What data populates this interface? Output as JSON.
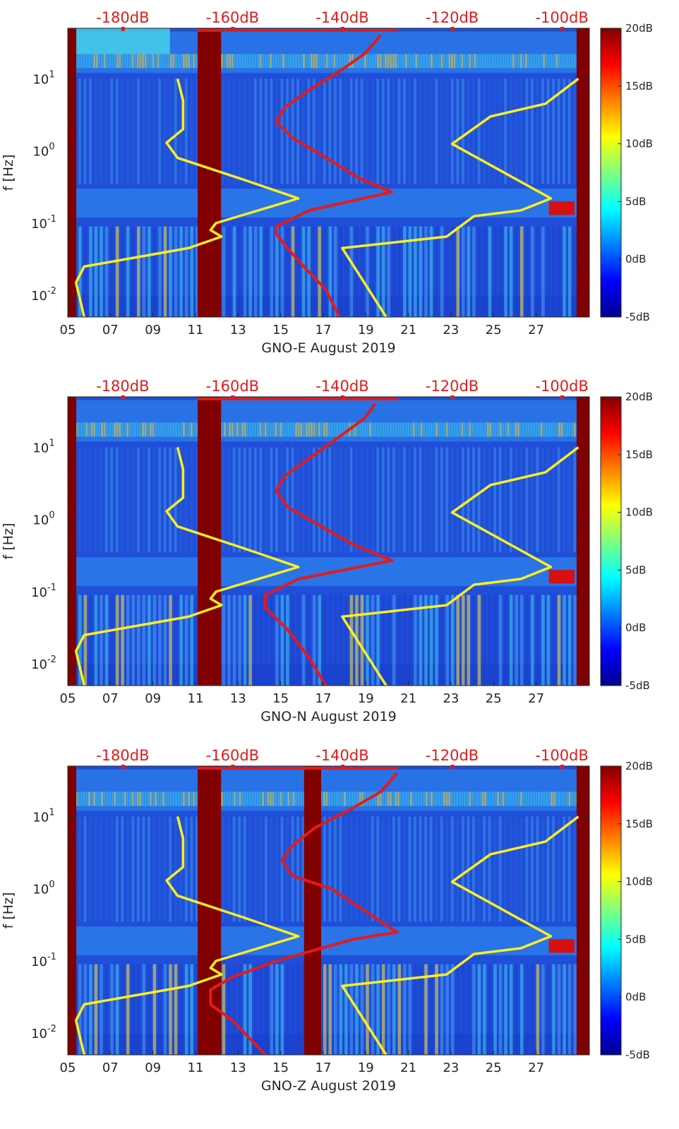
{
  "chart_data": [
    {
      "type": "heatmap",
      "title": "GNO-E August 2019",
      "xlabel": "GNO-E August 2019",
      "ylabel": "f [Hz]",
      "x_ticks": [
        "05",
        "07",
        "09",
        "11",
        "13",
        "15",
        "17",
        "19",
        "21",
        "23",
        "25",
        "27"
      ],
      "x_range_days": [
        5,
        29.5
      ],
      "y_ticks": [
        {
          "value": 0.01,
          "base": "10",
          "exp": "-2"
        },
        {
          "value": 0.1,
          "base": "10",
          "exp": "-1"
        },
        {
          "value": 1,
          "base": "10",
          "exp": "0"
        },
        {
          "value": 10,
          "base": "10",
          "exp": "1"
        }
      ],
      "y_range_hz": [
        0.005,
        50
      ],
      "y_scale": "log",
      "top_ticks": [
        "-180dB",
        "-160dB",
        "-140dB",
        "-120dB",
        "-100dB"
      ],
      "top_range_db": [
        -190,
        -95
      ],
      "colorbar": {
        "ticks": [
          "20dB",
          "15dB",
          "10dB",
          "5dB",
          "0dB",
          "-5dB"
        ],
        "range_db": [
          -5,
          20
        ],
        "colormap": "jet"
      },
      "gaps_days": [
        [
          5,
          5.4
        ],
        [
          11.1,
          12.2
        ],
        [
          28.9,
          29.5
        ]
      ],
      "series": [
        {
          "name": "noise model (yellow)",
          "color": "#ffee22",
          "unit_x": "dB",
          "points_db_hz": [
            [
              -187,
              0.005
            ],
            [
              -188.5,
              0.015
            ],
            [
              -187,
              0.025
            ],
            [
              -168,
              0.045
            ],
            [
              -162,
              0.065
            ],
            [
              -164,
              0.08
            ],
            [
              -163,
              0.1
            ],
            [
              -148,
              0.22
            ],
            [
              -158,
              0.4
            ],
            [
              -170,
              0.8
            ],
            [
              -172,
              1.3
            ],
            [
              -169,
              2
            ],
            [
              -169,
              5
            ],
            [
              -170,
              10
            ]
          ]
        },
        {
          "name": "noise model right (yellow)",
          "color": "#ffee22",
          "unit_x": "dB",
          "points_db_hz": [
            [
              -132,
              0.005
            ],
            [
              -140,
              0.045
            ],
            [
              -121,
              0.065
            ],
            [
              -116,
              0.125
            ],
            [
              -107.5,
              0.15
            ],
            [
              -102,
              0.22
            ],
            [
              -120,
              1.25
            ],
            [
              -113,
              3
            ],
            [
              -103,
              4.5
            ],
            [
              -97,
              10
            ]
          ]
        },
        {
          "name": "site noise (red)",
          "color": "#e21b1b",
          "unit_x": "dB",
          "points_db_hz": [
            [
              -140.5,
              0.005
            ],
            [
              -143,
              0.012
            ],
            [
              -147,
              0.025
            ],
            [
              -150,
              0.045
            ],
            [
              -152,
              0.07
            ],
            [
              -152,
              0.09
            ],
            [
              -146,
              0.15
            ],
            [
              -131,
              0.27
            ],
            [
              -137,
              0.42
            ],
            [
              -144,
              0.9
            ],
            [
              -149,
              1.5
            ],
            [
              -152,
              2.5
            ],
            [
              -150.5,
              4
            ],
            [
              -146,
              7
            ],
            [
              -141,
              12
            ],
            [
              -136,
              22
            ],
            [
              -133,
              40
            ]
          ]
        }
      ]
    },
    {
      "type": "heatmap",
      "title": "GNO-N August 2019",
      "xlabel": "GNO-N August 2019",
      "ylabel": "f [Hz]",
      "x_ticks": [
        "05",
        "07",
        "09",
        "11",
        "13",
        "15",
        "17",
        "19",
        "21",
        "23",
        "25",
        "27"
      ],
      "x_range_days": [
        5,
        29.5
      ],
      "y_ticks": [
        {
          "value": 0.01,
          "base": "10",
          "exp": "-2"
        },
        {
          "value": 0.1,
          "base": "10",
          "exp": "-1"
        },
        {
          "value": 1,
          "base": "10",
          "exp": "0"
        },
        {
          "value": 10,
          "base": "10",
          "exp": "1"
        }
      ],
      "y_range_hz": [
        0.005,
        50
      ],
      "y_scale": "log",
      "top_ticks": [
        "-180dB",
        "-160dB",
        "-140dB",
        "-120dB",
        "-100dB"
      ],
      "top_range_db": [
        -190,
        -95
      ],
      "colorbar": {
        "ticks": [
          "20dB",
          "15dB",
          "10dB",
          "5dB",
          "0dB",
          "-5dB"
        ],
        "range_db": [
          -5,
          20
        ],
        "colormap": "jet"
      },
      "gaps_days": [
        [
          5,
          5.4
        ],
        [
          11.1,
          12.2
        ],
        [
          28.9,
          29.5
        ]
      ],
      "series": [
        {
          "name": "noise model (yellow)",
          "color": "#ffee22",
          "unit_x": "dB",
          "points_db_hz": [
            [
              -187,
              0.005
            ],
            [
              -188.5,
              0.015
            ],
            [
              -187,
              0.025
            ],
            [
              -168,
              0.045
            ],
            [
              -162,
              0.065
            ],
            [
              -164,
              0.08
            ],
            [
              -163,
              0.1
            ],
            [
              -148,
              0.22
            ],
            [
              -158,
              0.4
            ],
            [
              -170,
              0.8
            ],
            [
              -172,
              1.3
            ],
            [
              -169,
              2
            ],
            [
              -169,
              5
            ],
            [
              -170,
              10
            ]
          ]
        },
        {
          "name": "noise model right (yellow)",
          "color": "#ffee22",
          "unit_x": "dB",
          "points_db_hz": [
            [
              -132,
              0.005
            ],
            [
              -140,
              0.045
            ],
            [
              -121,
              0.065
            ],
            [
              -116,
              0.125
            ],
            [
              -107.5,
              0.15
            ],
            [
              -102,
              0.22
            ],
            [
              -120,
              1.25
            ],
            [
              -113,
              3
            ],
            [
              -103,
              4.5
            ],
            [
              -97,
              10
            ]
          ]
        },
        {
          "name": "site noise (red)",
          "color": "#e21b1b",
          "unit_x": "dB",
          "points_db_hz": [
            [
              -143,
              0.005
            ],
            [
              -146,
              0.012
            ],
            [
              -150,
              0.03
            ],
            [
              -154,
              0.06
            ],
            [
              -154,
              0.09
            ],
            [
              -148,
              0.15
            ],
            [
              -131,
              0.27
            ],
            [
              -138,
              0.45
            ],
            [
              -145,
              0.9
            ],
            [
              -150,
              1.5
            ],
            [
              -152,
              2.5
            ],
            [
              -150.5,
              4
            ],
            [
              -145,
              8
            ],
            [
              -140,
              15
            ],
            [
              -136,
              25
            ],
            [
              -134,
              40
            ]
          ]
        }
      ]
    },
    {
      "type": "heatmap",
      "title": "GNO-Z August 2019",
      "xlabel": "GNO-Z August 2019",
      "ylabel": "f [Hz]",
      "x_ticks": [
        "05",
        "07",
        "09",
        "11",
        "13",
        "15",
        "17",
        "19",
        "21",
        "23",
        "25",
        "27"
      ],
      "x_range_days": [
        5,
        29.5
      ],
      "y_ticks": [
        {
          "value": 0.01,
          "base": "10",
          "exp": "-2"
        },
        {
          "value": 0.1,
          "base": "10",
          "exp": "-1"
        },
        {
          "value": 1,
          "base": "10",
          "exp": "0"
        },
        {
          "value": 10,
          "base": "10",
          "exp": "1"
        }
      ],
      "y_range_hz": [
        0.005,
        50
      ],
      "y_scale": "log",
      "top_ticks": [
        "-180dB",
        "-160dB",
        "-140dB",
        "-120dB",
        "-100dB"
      ],
      "top_range_db": [
        -190,
        -95
      ],
      "colorbar": {
        "ticks": [
          "20dB",
          "15dB",
          "10dB",
          "5dB",
          "0dB",
          "-5dB"
        ],
        "range_db": [
          -5,
          20
        ],
        "colormap": "jet"
      },
      "gaps_days": [
        [
          5,
          5.4
        ],
        [
          11.1,
          12.2
        ],
        [
          16.1,
          16.9
        ],
        [
          28.9,
          29.5
        ]
      ],
      "series": [
        {
          "name": "noise model (yellow)",
          "color": "#ffee22",
          "unit_x": "dB",
          "points_db_hz": [
            [
              -187,
              0.005
            ],
            [
              -188.5,
              0.015
            ],
            [
              -187,
              0.025
            ],
            [
              -168,
              0.045
            ],
            [
              -162,
              0.065
            ],
            [
              -164,
              0.08
            ],
            [
              -163,
              0.1
            ],
            [
              -148,
              0.22
            ],
            [
              -158,
              0.4
            ],
            [
              -170,
              0.8
            ],
            [
              -172,
              1.3
            ],
            [
              -169,
              2
            ],
            [
              -169,
              5
            ],
            [
              -170,
              10
            ]
          ]
        },
        {
          "name": "noise model right (yellow)",
          "color": "#ffee22",
          "unit_x": "dB",
          "points_db_hz": [
            [
              -132,
              0.005
            ],
            [
              -140,
              0.045
            ],
            [
              -121,
              0.065
            ],
            [
              -116,
              0.125
            ],
            [
              -107.5,
              0.15
            ],
            [
              -102,
              0.22
            ],
            [
              -120,
              1.25
            ],
            [
              -113,
              3
            ],
            [
              -103,
              4.5
            ],
            [
              -97,
              10
            ]
          ]
        },
        {
          "name": "site noise (red)",
          "color": "#e21b1b",
          "unit_x": "dB",
          "points_db_hz": [
            [
              -154,
              0.005
            ],
            [
              -160,
              0.015
            ],
            [
              -164,
              0.025
            ],
            [
              -164,
              0.04
            ],
            [
              -160,
              0.06
            ],
            [
              -152,
              0.1
            ],
            [
              -138,
              0.2
            ],
            [
              -130,
              0.25
            ],
            [
              -136,
              0.5
            ],
            [
              -142,
              1
            ],
            [
              -149,
              1.5
            ],
            [
              -151,
              2.5
            ],
            [
              -149,
              4
            ],
            [
              -145,
              7
            ],
            [
              -139,
              12
            ],
            [
              -133,
              22
            ],
            [
              -130,
              40
            ]
          ]
        }
      ]
    }
  ]
}
